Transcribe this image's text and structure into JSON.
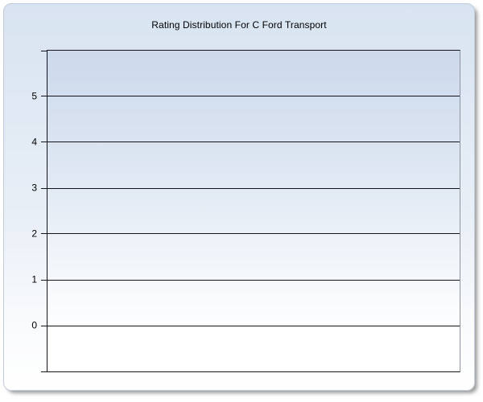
{
  "chart_data": {
    "type": "bar",
    "title": "Rating Distribution For C Ford Transport",
    "categories": [],
    "values": [],
    "xlabel": "",
    "ylabel": "",
    "ylim": [
      -1,
      6
    ],
    "yticks": [
      5,
      4,
      3,
      2,
      1,
      0
    ],
    "grid": "horizontal",
    "legend": "none"
  },
  "colors": {
    "panel_bg_top": "#dbe6f3",
    "panel_bg_bottom": "#ffffff",
    "plot_bg_top": "#ccd9ec",
    "plot_bg_bottom": "#ffffff",
    "gridline": "#14141c",
    "plot_right_border": "#8e959e",
    "text": "#000000"
  }
}
